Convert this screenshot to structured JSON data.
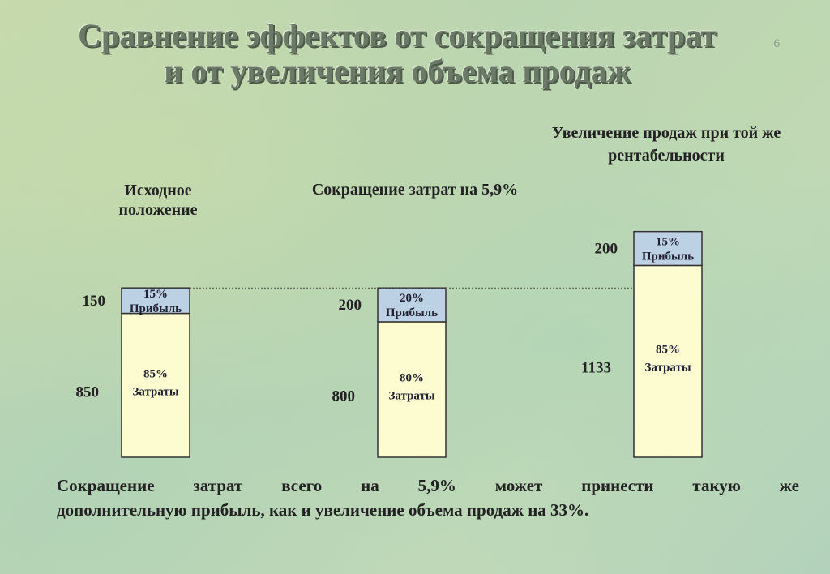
{
  "title": "Сравнение эффектов от сокращения затрат и от увеличения объема продаж",
  "slide_number": "6",
  "groups": [
    {
      "label": "Исходное положение"
    },
    {
      "label": "Сокращение затрат на 5,9%"
    },
    {
      "label": "Увеличение продаж при той же рентабельности"
    }
  ],
  "conclusion": {
    "line1": "Сокращение затрат всего на 5,9% может принести такую же",
    "line2": "дополнительную прибыль, как и увеличение объема продаж на 33%."
  },
  "chart_data": {
    "type": "bar",
    "stacked": true,
    "categories": [
      "Исходное положение",
      "Сокращение затрат на 5,9%",
      "Увеличение продаж при той же рентабельности"
    ],
    "series": [
      {
        "name": "Затраты",
        "values": [
          850,
          800,
          1133
        ],
        "percent_labels": [
          "85%",
          "80%",
          "85%"
        ],
        "color": "#fdfbd0"
      },
      {
        "name": "Прибыль",
        "values": [
          150,
          200,
          200
        ],
        "percent_labels": [
          "15%",
          "20%",
          "15%"
        ],
        "color": "#bcd2e4"
      }
    ],
    "value_labels": {
      "costs": [
        "850",
        "800",
        "1133"
      ],
      "profit": [
        "150",
        "200",
        "200"
      ]
    },
    "segment_names": {
      "costs": "Затраты",
      "profit": "Прибыль"
    }
  }
}
